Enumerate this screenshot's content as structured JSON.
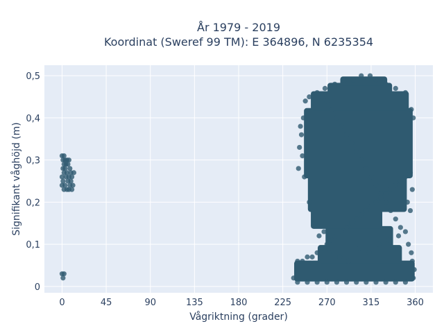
{
  "chart_data": {
    "type": "scatter",
    "title_line1": "År 1979 - 2019",
    "title_line2": "Koordinat (Sweref 99 TM): E 364896, N 6235354",
    "xlabel": "Vågriktning (grader)",
    "ylabel": "Signifikant våghöjd (m)",
    "xlim": [
      -18,
      378
    ],
    "ylim": [
      -0.015,
      0.525
    ],
    "x_ticks": [
      0,
      45,
      90,
      135,
      180,
      225,
      270,
      315,
      360
    ],
    "x_tick_labels": [
      "0",
      "45",
      "90",
      "135",
      "180",
      "225",
      "270",
      "315",
      "360"
    ],
    "y_ticks": [
      0,
      0.1,
      0.2,
      0.3,
      0.4,
      0.5
    ],
    "y_tick_labels": [
      "0",
      "0,1",
      "0,2",
      "0,3",
      "0,4",
      "0,5"
    ],
    "grid": true,
    "marker_color": "#2f5a70",
    "plot_background": "#e5ecf6",
    "series": [
      {
        "points": [
          [
            0,
            0.31
          ],
          [
            2,
            0.31
          ],
          [
            1,
            0.3
          ],
          [
            3,
            0.3
          ],
          [
            5,
            0.3
          ],
          [
            7,
            0.3
          ],
          [
            2,
            0.29
          ],
          [
            4,
            0.29
          ],
          [
            6,
            0.29
          ],
          [
            1,
            0.28
          ],
          [
            3,
            0.28
          ],
          [
            8,
            0.28
          ],
          [
            2,
            0.27
          ],
          [
            5,
            0.27
          ],
          [
            9,
            0.27
          ],
          [
            12,
            0.27
          ],
          [
            0,
            0.26
          ],
          [
            4,
            0.26
          ],
          [
            7,
            0.26
          ],
          [
            10,
            0.26
          ],
          [
            1,
            0.25
          ],
          [
            6,
            0.25
          ],
          [
            9,
            0.25
          ],
          [
            0,
            0.24
          ],
          [
            3,
            0.24
          ],
          [
            8,
            0.24
          ],
          [
            11,
            0.24
          ],
          [
            2,
            0.23
          ],
          [
            5,
            0.23
          ],
          [
            7,
            0.23
          ],
          [
            10,
            0.23
          ],
          [
            0,
            0.03
          ],
          [
            2,
            0.03
          ],
          [
            1,
            0.02
          ],
          [
            240,
            0.06
          ],
          [
            245,
            0.06
          ],
          [
            250,
            0.07
          ],
          [
            255,
            0.07
          ],
          [
            260,
            0.08
          ],
          [
            265,
            0.09
          ],
          [
            270,
            0.1
          ],
          [
            275,
            0.11
          ],
          [
            280,
            0.12
          ],
          [
            285,
            0.13
          ],
          [
            290,
            0.14
          ],
          [
            295,
            0.15
          ],
          [
            300,
            0.16
          ],
          [
            305,
            0.17
          ],
          [
            310,
            0.18
          ],
          [
            315,
            0.19
          ],
          [
            320,
            0.2
          ],
          [
            325,
            0.21
          ],
          [
            330,
            0.22
          ],
          [
            335,
            0.23
          ],
          [
            340,
            0.24
          ],
          [
            345,
            0.25
          ],
          [
            350,
            0.26
          ],
          [
            355,
            0.27
          ],
          [
            246,
            0.4
          ],
          [
            244,
            0.36
          ],
          [
            245,
            0.31
          ],
          [
            247,
            0.26
          ],
          [
            252,
            0.2
          ],
          [
            258,
            0.15
          ],
          [
            262,
            0.12
          ],
          [
            267,
            0.13
          ],
          [
            272,
            0.08
          ],
          [
            283,
            0.07
          ],
          [
            292,
            0.06
          ],
          [
            303,
            0.09
          ],
          [
            313,
            0.08
          ],
          [
            323,
            0.1
          ],
          [
            333,
            0.11
          ],
          [
            343,
            0.12
          ],
          [
            350,
            0.13
          ],
          [
            352,
            0.2
          ],
          [
            355,
            0.18
          ],
          [
            357,
            0.23
          ],
          [
            358,
            0.4
          ],
          [
            356,
            0.42
          ],
          [
            350,
            0.46
          ],
          [
            340,
            0.47
          ],
          [
            330,
            0.48
          ],
          [
            320,
            0.49
          ],
          [
            314,
            0.5
          ],
          [
            305,
            0.5
          ],
          [
            297,
            0.49
          ],
          [
            288,
            0.49
          ],
          [
            278,
            0.48
          ],
          [
            268,
            0.47
          ],
          [
            260,
            0.46
          ],
          [
            252,
            0.45
          ],
          [
            248,
            0.44
          ],
          [
            243,
            0.38
          ],
          [
            242,
            0.33
          ],
          [
            241,
            0.28
          ],
          [
            236,
            0.02
          ],
          [
            240,
            0.01
          ],
          [
            250,
            0.01
          ],
          [
            260,
            0.01
          ],
          [
            270,
            0.01
          ],
          [
            280,
            0.01
          ],
          [
            290,
            0.01
          ],
          [
            300,
            0.01
          ],
          [
            310,
            0.01
          ],
          [
            320,
            0.01
          ],
          [
            330,
            0.01
          ],
          [
            340,
            0.01
          ],
          [
            350,
            0.01
          ],
          [
            358,
            0.02
          ],
          [
            359,
            0.04
          ],
          [
            357,
            0.06
          ],
          [
            356,
            0.08
          ],
          [
            353,
            0.1
          ],
          [
            345,
            0.14
          ],
          [
            340,
            0.16
          ],
          [
            335,
            0.18
          ],
          [
            330,
            0.2
          ],
          [
            325,
            0.22
          ],
          [
            320,
            0.24
          ],
          [
            315,
            0.26
          ],
          [
            310,
            0.28
          ],
          [
            305,
            0.3
          ],
          [
            300,
            0.32
          ],
          [
            295,
            0.34
          ],
          [
            290,
            0.36
          ],
          [
            285,
            0.38
          ],
          [
            280,
            0.4
          ],
          [
            275,
            0.42
          ],
          [
            270,
            0.44
          ],
          [
            265,
            0.45
          ]
        ]
      }
    ],
    "density_regions": [
      {
        "x_range": [
          238,
          358
        ],
        "y_range": [
          0.015,
          0.058
        ]
      },
      {
        "x_range": [
          262,
          345
        ],
        "y_range": [
          0.058,
          0.095
        ]
      },
      {
        "x_range": [
          270,
          336
        ],
        "y_range": [
          0.095,
          0.14
        ]
      },
      {
        "x_range": [
          255,
          325
        ],
        "y_range": [
          0.14,
          0.18
        ]
      },
      {
        "x_range": [
          252,
          350
        ],
        "y_range": [
          0.18,
          0.26
        ]
      },
      {
        "x_range": [
          248,
          356
        ],
        "y_range": [
          0.26,
          0.42
        ]
      },
      {
        "x_range": [
          255,
          352
        ],
        "y_range": [
          0.42,
          0.46
        ]
      },
      {
        "x_range": [
          272,
          335
        ],
        "y_range": [
          0.46,
          0.48
        ]
      },
      {
        "x_range": [
          285,
          330
        ],
        "y_range": [
          0.48,
          0.495
        ]
      }
    ]
  }
}
